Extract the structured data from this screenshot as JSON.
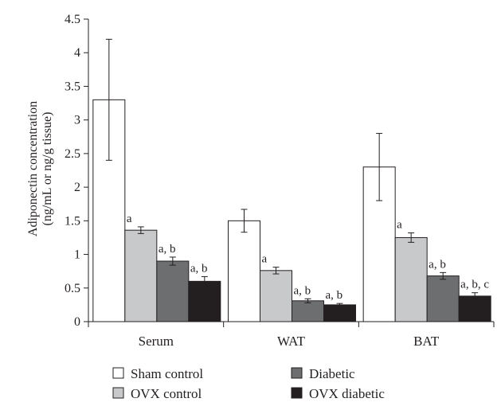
{
  "chart_data": {
    "type": "bar",
    "title": "",
    "xlabel": "",
    "ylabel_lines": [
      "Adiponectin concentration",
      "(ng/mL or ng/g tissue)"
    ],
    "ylim": [
      0,
      4.5
    ],
    "y_ticks": [
      "0",
      "0.5",
      "1",
      "1.5",
      "2",
      "2.5",
      "3",
      "3.5",
      "4",
      "4.5"
    ],
    "grid": false,
    "legend_position": "bottom",
    "categories": [
      "Serum",
      "WAT",
      "BAT"
    ],
    "series": [
      {
        "name": "Sham control",
        "color": "#ffffff",
        "values": [
          3.3,
          1.5,
          2.3
        ],
        "errors": [
          0.9,
          0.17,
          0.5
        ],
        "annotations": [
          "",
          "",
          ""
        ]
      },
      {
        "name": "OVX control",
        "color": "#c8c9cb",
        "values": [
          1.36,
          0.76,
          1.25
        ],
        "errors": [
          0.05,
          0.05,
          0.07
        ],
        "annotations": [
          "a",
          "a",
          "a"
        ]
      },
      {
        "name": "Diabetic",
        "color": "#6d6e70",
        "values": [
          0.9,
          0.31,
          0.68
        ],
        "errors": [
          0.06,
          0.03,
          0.05
        ],
        "annotations": [
          "a, b",
          "a, b",
          "a, b"
        ]
      },
      {
        "name": "OVX diabetic",
        "color": "#231f20",
        "values": [
          0.6,
          0.25,
          0.38
        ],
        "errors": [
          0.07,
          0.02,
          0.05
        ],
        "annotations": [
          "a, b",
          "a, b",
          "a, b, c"
        ]
      }
    ]
  }
}
